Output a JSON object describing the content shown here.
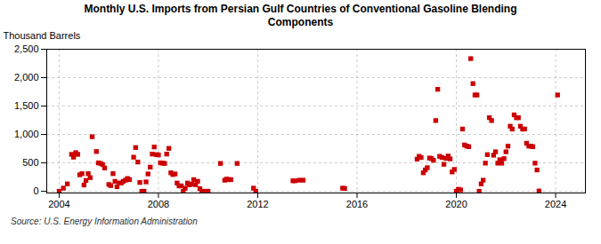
{
  "chart_data": {
    "type": "scatter",
    "title": "Monthly U.S. Imports from Persian Gulf Countries of Conventional Gasoline Blending\nComponents",
    "ylabel": "Thousand Barrels",
    "source": "Source: U.S. Energy Information Administration",
    "color": "#CC0000",
    "marker": "square",
    "grid": true,
    "xlim": [
      2003.5,
      2025.2
    ],
    "ylim": [
      -30,
      2500
    ],
    "xticks": [
      2004,
      2008,
      2012,
      2016,
      2020,
      2024
    ],
    "yticks": [
      0,
      500,
      {
        "value": 1000,
        "label": "1,000"
      },
      {
        "value": 1500,
        "label": "1,500"
      },
      {
        "value": 2000,
        "label": "2,000"
      },
      {
        "value": 2500,
        "label": "2,500"
      }
    ],
    "x": [
      2004.0,
      2004.17,
      2004.33,
      2004.5,
      2004.58,
      2004.67,
      2004.75,
      2004.83,
      2004.92,
      2005.0,
      2005.08,
      2005.17,
      2005.25,
      2005.33,
      2005.5,
      2005.58,
      2005.67,
      2005.75,
      2005.83,
      2006.0,
      2006.08,
      2006.17,
      2006.25,
      2006.33,
      2006.42,
      2006.5,
      2006.58,
      2006.67,
      2006.75,
      2006.83,
      2007.0,
      2007.08,
      2007.17,
      2007.25,
      2007.33,
      2007.42,
      2007.5,
      2007.58,
      2007.67,
      2007.75,
      2007.83,
      2007.92,
      2008.0,
      2008.08,
      2008.17,
      2008.25,
      2008.33,
      2008.42,
      2008.5,
      2008.58,
      2008.67,
      2008.75,
      2008.83,
      2008.92,
      2009.0,
      2009.08,
      2009.17,
      2009.25,
      2009.33,
      2009.42,
      2009.5,
      2009.58,
      2009.67,
      2009.75,
      2009.83,
      2009.92,
      2010.0,
      2010.5,
      2010.67,
      2010.75,
      2010.83,
      2010.92,
      2011.17,
      2011.83,
      2011.92,
      2013.42,
      2013.5,
      2013.67,
      2013.83,
      2015.42,
      2015.5,
      2018.42,
      2018.5,
      2018.58,
      2018.67,
      2018.75,
      2018.83,
      2018.92,
      2019.0,
      2019.08,
      2019.17,
      2019.25,
      2019.33,
      2019.42,
      2019.5,
      2019.58,
      2019.67,
      2019.75,
      2019.83,
      2019.92,
      2020.0,
      2020.08,
      2020.17,
      2020.25,
      2020.33,
      2020.42,
      2020.5,
      2020.58,
      2020.67,
      2020.75,
      2020.83,
      2020.92,
      2021.0,
      2021.08,
      2021.17,
      2021.25,
      2021.33,
      2021.42,
      2021.5,
      2021.58,
      2021.67,
      2021.75,
      2021.83,
      2021.92,
      2022.0,
      2022.08,
      2022.17,
      2022.25,
      2022.33,
      2022.42,
      2022.5,
      2022.58,
      2022.67,
      2022.75,
      2022.83,
      2022.92,
      2023.0,
      2023.08,
      2023.17,
      2023.25,
      2023.33,
      2024.08
    ],
    "values": [
      0,
      55,
      130,
      650,
      600,
      680,
      650,
      290,
      310,
      110,
      190,
      310,
      240,
      960,
      700,
      500,
      490,
      470,
      410,
      120,
      100,
      310,
      175,
      80,
      145,
      145,
      175,
      195,
      225,
      205,
      600,
      770,
      515,
      155,
      0,
      0,
      165,
      305,
      425,
      655,
      780,
      645,
      640,
      500,
      495,
      490,
      655,
      755,
      325,
      295,
      305,
      145,
      95,
      95,
      0,
      55,
      145,
      115,
      125,
      205,
      115,
      175,
      45,
      0,
      0,
      0,
      0,
      490,
      195,
      215,
      205,
      205,
      490,
      55,
      0,
      185,
      185,
      195,
      195,
      55,
      50,
      565,
      615,
      595,
      325,
      375,
      415,
      585,
      575,
      545,
      1245,
      1795,
      615,
      595,
      475,
      580,
      620,
      570,
      340,
      385,
      0,
      35,
      25,
      1095,
      815,
      795,
      785,
      2335,
      1895,
      1695,
      1695,
      0,
      130,
      195,
      495,
      645,
      1295,
      1245,
      635,
      695,
      495,
      555,
      495,
      575,
      695,
      795,
      1145,
      1095,
      1345,
      1295,
      1295,
      1145,
      1095,
      1095,
      845,
      795,
      795,
      785,
      495,
      375,
      5,
      1695
    ]
  }
}
